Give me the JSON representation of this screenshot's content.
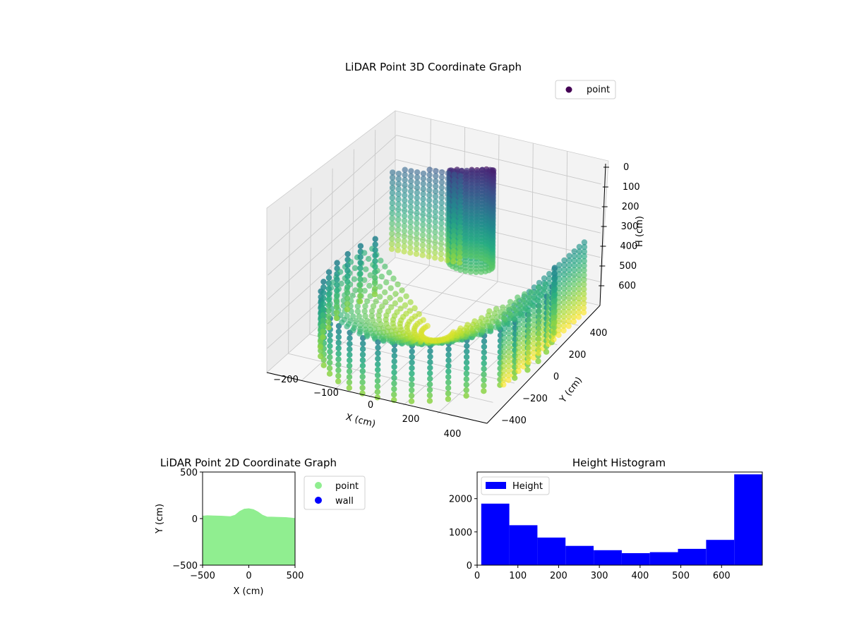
{
  "chart_data": [
    {
      "type": "scatter3d",
      "title": "LiDAR Point 3D Coordinate Graph",
      "xlabel": "X (cm)",
      "ylabel": "Y (cm)",
      "zlabel": "H (cm)",
      "x_ticks": [
        "−200",
        "−100",
        "0",
        "200",
        "400"
      ],
      "y_ticks": [
        "400",
        "200",
        "0",
        "−200",
        "−400"
      ],
      "z_ticks": [
        "0",
        "100",
        "200",
        "300",
        "400",
        "500",
        "600"
      ],
      "zlim": [
        0,
        690
      ],
      "z_inverted": true,
      "colormap": "viridis",
      "legend": {
        "label": "point",
        "color": "#440154",
        "position": "top-right"
      },
      "grid": true
    },
    {
      "type": "scatter",
      "title": "LiDAR Point 2D Coordinate Graph",
      "xlabel": "X (cm)",
      "ylabel": "Y (cm)",
      "xlim": [
        -500,
        500
      ],
      "ylim": [
        -500,
        500
      ],
      "x_ticks": [
        "−500",
        "0",
        "500"
      ],
      "y_ticks": [
        "500",
        "0",
        "−500"
      ],
      "legend_position": "outside-right",
      "series": [
        {
          "name": "point",
          "color": "#90ee90",
          "upper_boundary_x": [
            -500,
            -450,
            -400,
            -300,
            -200,
            -150,
            -100,
            -50,
            0,
            50,
            100,
            150,
            200,
            250,
            300,
            400,
            500
          ],
          "upper_boundary_y": [
            30,
            35,
            33,
            30,
            25,
            40,
            80,
            105,
            110,
            100,
            75,
            40,
            20,
            20,
            18,
            15,
            5
          ]
        },
        {
          "name": "wall",
          "color": "#0000ff",
          "points": []
        }
      ]
    },
    {
      "type": "bar",
      "title": "Height Histogram",
      "legend": {
        "label": "Height",
        "position": "top-left"
      },
      "color": "#0000ff",
      "xlim": [
        0,
        700
      ],
      "ylim": [
        0,
        2800
      ],
      "x_ticks": [
        "0",
        "100",
        "200",
        "300",
        "400",
        "500",
        "600"
      ],
      "y_ticks": [
        "0",
        "1000",
        "2000"
      ],
      "bin_edges": [
        10,
        79,
        148,
        217,
        286,
        355,
        424,
        493,
        562,
        631,
        700
      ],
      "values": [
        1850,
        1200,
        830,
        580,
        450,
        360,
        390,
        490,
        760,
        2730
      ]
    }
  ]
}
